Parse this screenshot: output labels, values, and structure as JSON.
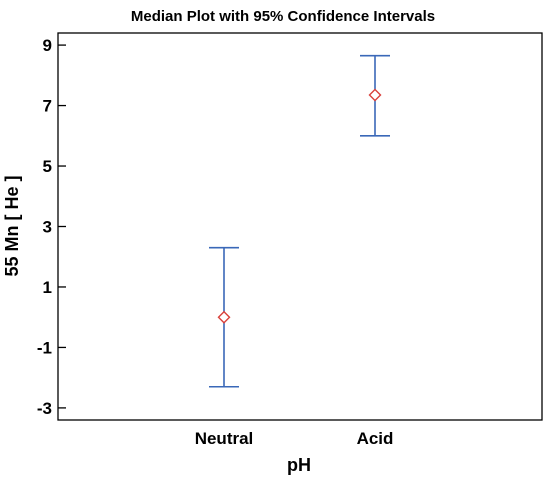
{
  "chart_data": {
    "type": "errorbar",
    "title": "Median Plot with 95% Confidence Intervals",
    "xlabel": "pH",
    "ylabel": "55 Mn [ He ]",
    "categories": [
      "Neutral",
      "Acid"
    ],
    "series": [
      {
        "medians": [
          0.0,
          7.35
        ],
        "lower": [
          -2.3,
          6.0
        ],
        "upper": [
          2.3,
          8.65
        ]
      }
    ],
    "ylim": [
      -3.4,
      9.4
    ],
    "yticks": [
      9,
      7,
      5,
      3,
      1,
      -1,
      -3
    ],
    "ytick_labels": [
      "9",
      "7",
      "5",
      "3",
      "1",
      "-1",
      "-3"
    ],
    "grid": false,
    "colors": {
      "errorbar": "#3a68b8",
      "median_marker": "#d9403a",
      "axis": "#000000"
    },
    "marker": "diamond-open"
  }
}
